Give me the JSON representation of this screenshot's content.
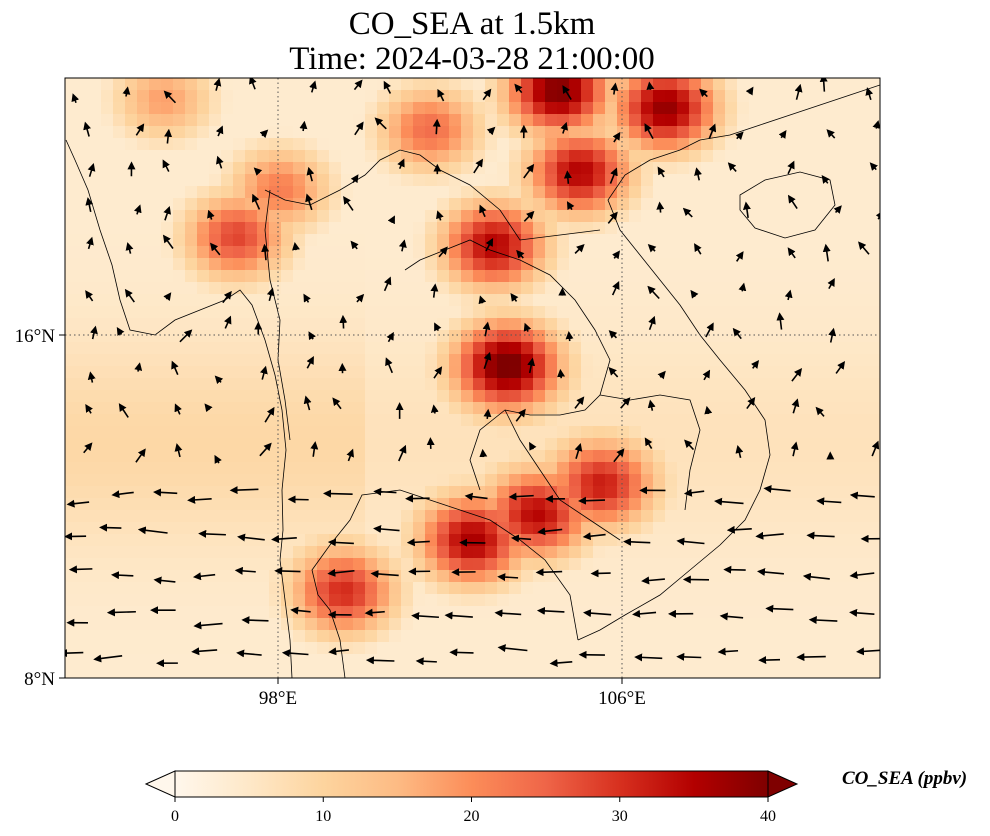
{
  "title": {
    "line1": "CO_SEA at 1.5km",
    "line2": "Time: 2024-03-28 21:00:00"
  },
  "map": {
    "extent": {
      "lon_min": 93,
      "lon_max": 112,
      "lat_min": 8,
      "lat_max": 22
    },
    "lon_ticks": [
      {
        "value": 98,
        "label": "98°E"
      },
      {
        "value": 106,
        "label": "106°E"
      }
    ],
    "lat_ticks": [
      {
        "value": 16,
        "label": "16°N"
      },
      {
        "value": 8,
        "label": "8°N"
      }
    ],
    "gridlines": true,
    "field": "CO concentration",
    "vectors": "wind"
  },
  "colorbar": {
    "label": "CO_SEA (ppbv)",
    "min": 0,
    "max": 40,
    "ticks": [
      0,
      10,
      20,
      30,
      40
    ],
    "colormap": "OrRd",
    "extend": "both",
    "colors": [
      "#fff7ec",
      "#fee8c8",
      "#fdd49e",
      "#fdbb84",
      "#fc8d59",
      "#ef6548",
      "#d7301f",
      "#b30000",
      "#7f0000"
    ]
  },
  "chart_data": {
    "type": "heatmap",
    "title": "CO_SEA at 1.5km\nTime: 2024-03-28 21:00:00",
    "xlabel": "",
    "ylabel": "",
    "x_range": [
      93,
      112
    ],
    "y_range": [
      8,
      22
    ],
    "value_range": [
      0,
      40
    ],
    "unit": "ppbv",
    "hotspots": [
      {
        "lon": 104.5,
        "lat": 21.7,
        "value": 40
      },
      {
        "lon": 107.0,
        "lat": 21.3,
        "value": 38
      },
      {
        "lon": 105.0,
        "lat": 19.8,
        "value": 35
      },
      {
        "lon": 103.0,
        "lat": 18.1,
        "value": 35
      },
      {
        "lon": 103.3,
        "lat": 15.3,
        "value": 40
      },
      {
        "lon": 102.5,
        "lat": 11.2,
        "value": 35
      },
      {
        "lon": 104.0,
        "lat": 11.8,
        "value": 33
      },
      {
        "lon": 105.5,
        "lat": 12.5,
        "value": 30
      },
      {
        "lon": 99.5,
        "lat": 10.0,
        "value": 30
      },
      {
        "lon": 97.0,
        "lat": 18.3,
        "value": 28
      },
      {
        "lon": 98.0,
        "lat": 19.4,
        "value": 22
      },
      {
        "lon": 101.5,
        "lat": 20.8,
        "value": 24
      },
      {
        "lon": 95.3,
        "lat": 21.5,
        "value": 18
      }
    ]
  }
}
